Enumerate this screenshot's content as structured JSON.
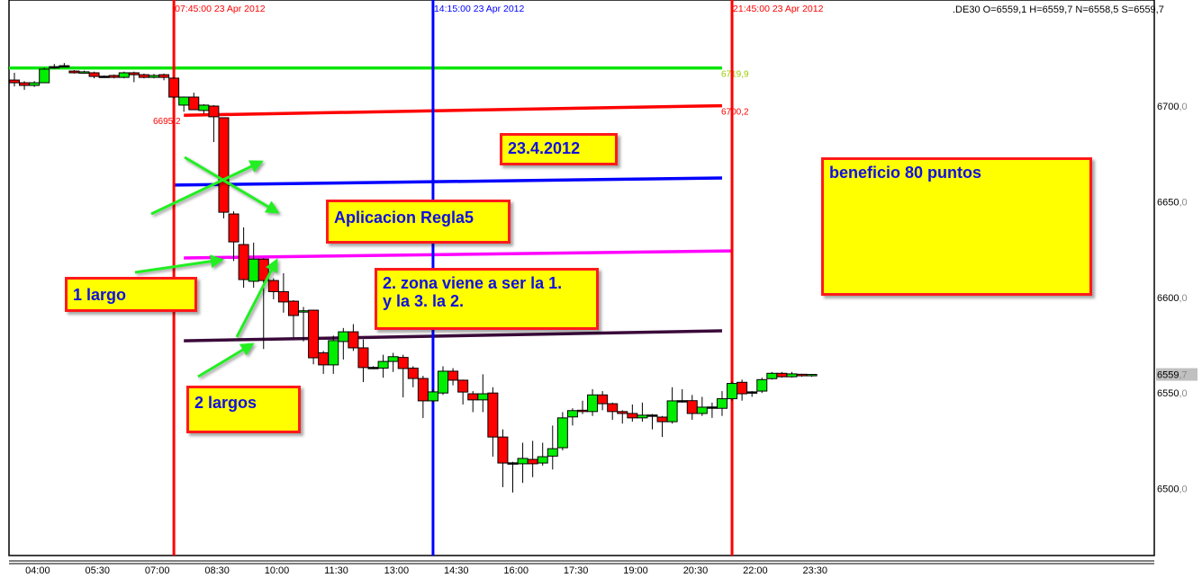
{
  "header": {
    "symbol_readout": ".DE30 O=6559,1 H=6559,7 N=6558,5 S=6559,7"
  },
  "chart_data": {
    "type": "candlestick",
    "symbol": ".DE30",
    "timeframe_minutes": 15,
    "ylim": [
      6478,
      6745
    ],
    "y_ticks": [
      {
        "int": "6700",
        "dec": ",0",
        "v": 6700
      },
      {
        "int": "6650",
        "dec": ",0",
        "v": 6650
      },
      {
        "int": "6600",
        "dec": ",0",
        "v": 6600
      },
      {
        "int": "6550",
        "dec": ",0",
        "v": 6550
      },
      {
        "int": "6500",
        "dec": ",0",
        "v": 6500
      }
    ],
    "current_price": {
      "int": "6559",
      "dec": ",7",
      "v": 6559.7
    },
    "x_ticks": [
      "04:00",
      "05:30",
      "07:00",
      "08:30",
      "10:00",
      "11:30",
      "13:00",
      "14:30",
      "16:00",
      "17:30",
      "19:00",
      "20:30",
      "22:00",
      "23:30"
    ],
    "colors": {
      "bull": "#00ee00",
      "bear": "#ff0000",
      "grid_frame": "#000000"
    },
    "candles": [
      [
        "03:45",
        6713.6,
        6717.4,
        6710.3,
        6712.2
      ],
      [
        "04:00",
        6712.2,
        6713,
        6708.5,
        6710.8
      ],
      [
        "04:15",
        6710.8,
        6713,
        6710,
        6712.2
      ],
      [
        "04:30",
        6712.2,
        6720,
        6712,
        6719.3
      ],
      [
        "04:45",
        6720.5,
        6722,
        6719.5,
        6720.6
      ],
      [
        "05:00",
        6721,
        6722.5,
        6720.5,
        6721.1
      ],
      [
        "05:15",
        6718.3,
        6718.8,
        6717,
        6717.4
      ],
      [
        "05:30",
        6717.4,
        6718.5,
        6717,
        6717.9
      ],
      [
        "05:45",
        6717.4,
        6718,
        6714.5,
        6715.5
      ],
      [
        "06:00",
        6715.5,
        6716,
        6715,
        6715.6
      ],
      [
        "06:15",
        6716,
        6716.5,
        6714.5,
        6715
      ],
      [
        "06:30",
        6715,
        6718,
        6714.5,
        6717.4
      ],
      [
        "06:45",
        6717.4,
        6718,
        6712.5,
        6716.4
      ],
      [
        "07:00",
        6716.4,
        6717,
        6714.5,
        6715
      ],
      [
        "07:15",
        6715,
        6716.8,
        6714.5,
        6716
      ],
      [
        "07:30",
        6716.4,
        6717,
        6713.5,
        6715
      ],
      [
        "07:45",
        6714.6,
        6715,
        6704,
        6704.7
      ],
      [
        "08:00",
        6700.5,
        6705,
        6697,
        6704.7
      ],
      [
        "08:15",
        6704.7,
        6707,
        6698,
        6698.1
      ],
      [
        "08:30",
        6697.7,
        6701,
        6696,
        6700.5
      ],
      [
        "08:45",
        6700,
        6700.5,
        6681.2,
        6694.4
      ],
      [
        "09:00",
        6693.9,
        6694,
        6641.3,
        6644.5
      ],
      [
        "09:15",
        6643.6,
        6645,
        6619,
        6629
      ],
      [
        "09:30",
        6627.6,
        6636.6,
        6605,
        6609.3
      ],
      [
        "09:45",
        6608.4,
        6628.6,
        6605,
        6620
      ],
      [
        "10:00",
        6620,
        6620.5,
        6573,
        6608.8
      ],
      [
        "10:15",
        6608.8,
        6610,
        6599,
        6603
      ],
      [
        "10:30",
        6603,
        6612.6,
        6592,
        6597.6
      ],
      [
        "10:45",
        6598,
        6598.5,
        6579,
        6590.5
      ],
      [
        "11:00",
        6592.5,
        6595,
        6577,
        6593
      ],
      [
        "11:15",
        6593.3,
        6593.5,
        6565,
        6568.4
      ],
      [
        "11:30",
        6571,
        6572,
        6560,
        6564.7
      ],
      [
        "11:45",
        6564.7,
        6580,
        6560,
        6577.4
      ],
      [
        "12:00",
        6576.9,
        6584,
        6567.5,
        6582
      ],
      [
        "12:15",
        6582,
        6586,
        6572,
        6573.6
      ],
      [
        "12:30",
        6573.6,
        6578,
        6555.7,
        6563.3
      ],
      [
        "12:45",
        6563.3,
        6564,
        6562.5,
        6563.4
      ],
      [
        "13:00",
        6563,
        6570,
        6558,
        6566.5
      ],
      [
        "13:15",
        6566.5,
        6571,
        6561,
        6569
      ],
      [
        "13:30",
        6568.6,
        6570,
        6547.7,
        6562.8
      ],
      [
        "13:45",
        6563,
        6564,
        6553,
        6557.6
      ],
      [
        "14:00",
        6557.6,
        6559,
        6536.9,
        6545.9
      ],
      [
        "14:15",
        6545.9,
        6552,
        6545,
        6550.6
      ],
      [
        "14:30",
        6550,
        6564,
        6549,
        6561.4
      ],
      [
        "14:45",
        6561.4,
        6563,
        6554,
        6556.7
      ],
      [
        "15:00",
        6556.7,
        6557,
        6544,
        6550.5
      ],
      [
        "15:15",
        6549.6,
        6551,
        6540,
        6546.4
      ],
      [
        "15:30",
        6546.4,
        6559.8,
        6540,
        6549.6
      ],
      [
        "15:45",
        6550,
        6553,
        6516.7,
        6527
      ],
      [
        "16:00",
        6527,
        6531,
        6500.8,
        6513.4
      ],
      [
        "16:15",
        6513.4,
        6514,
        6498,
        6513.5
      ],
      [
        "16:30",
        6513,
        6524,
        6503,
        6515.8
      ],
      [
        "16:45",
        6515.3,
        6525,
        6506,
        6513
      ],
      [
        "17:00",
        6513.4,
        6524,
        6512,
        6516.7
      ],
      [
        "17:15",
        6517,
        6533,
        6510,
        6520.9
      ],
      [
        "17:30",
        6521.4,
        6540,
        6520,
        6537
      ],
      [
        "17:45",
        6537.5,
        6542,
        6533,
        6540.8
      ],
      [
        "18:00",
        6541,
        6546,
        6539,
        6540.3
      ],
      [
        "18:15",
        6540.3,
        6552,
        6538,
        6549
      ],
      [
        "18:30",
        6549,
        6551,
        6541,
        6544.4
      ],
      [
        "18:45",
        6544.4,
        6545,
        6536,
        6540.3
      ],
      [
        "19:00",
        6540.3,
        6541,
        6534,
        6539.3
      ],
      [
        "19:15",
        6539.3,
        6544,
        6535,
        6537
      ],
      [
        "19:30",
        6537,
        6545,
        6535,
        6538.4
      ],
      [
        "19:45",
        6538.4,
        6539,
        6531,
        6538.5
      ],
      [
        "20:00",
        6537.4,
        6538,
        6527,
        6535
      ],
      [
        "20:15",
        6535,
        6553,
        6534,
        6545.9
      ],
      [
        "20:30",
        6545.9,
        6552,
        6545,
        6546
      ],
      [
        "20:45",
        6546,
        6549,
        6536,
        6539.3
      ],
      [
        "21:00",
        6539.3,
        6548,
        6538,
        6542.6
      ],
      [
        "21:15",
        6542.6,
        6545,
        6537,
        6542.7
      ],
      [
        "21:30",
        6542,
        6551,
        6538,
        6547
      ],
      [
        "21:45",
        6547,
        6556,
        6546,
        6555
      ],
      [
        "22:00",
        6555.6,
        6557,
        6546,
        6549.6
      ],
      [
        "22:15",
        6550.5,
        6551,
        6548,
        6550.6
      ],
      [
        "22:30",
        6551,
        6558,
        6550,
        6557
      ],
      [
        "22:45",
        6557.5,
        6561,
        6557,
        6560.3
      ],
      [
        "23:00",
        6560.3,
        6561,
        6558,
        6558.5
      ],
      [
        "23:15",
        6558.5,
        6561,
        6558,
        6560
      ],
      [
        "23:30",
        6559.8,
        6560,
        6558.5,
        6559
      ],
      [
        "23:45",
        6559.1,
        6559.7,
        6558.5,
        6559.7
      ]
    ],
    "vertical_lines": [
      {
        "time": "07:45",
        "label": "07:45:00 23 Apr 2012",
        "color": "#ff0000"
      },
      {
        "time": "14:15",
        "label": "14:15:00 23 Apr 2012",
        "color": "#0000ff"
      },
      {
        "time": "21:45",
        "label": "21:45:00 23 Apr 2012",
        "color": "#ff0000"
      }
    ],
    "trend_lines": [
      {
        "name": "green",
        "color": "#00e600",
        "from": [
          "03:30",
          6719.9
        ],
        "to": [
          "21:30",
          6719.9
        ],
        "end_label": "6719,9",
        "label_color": "#99cc00"
      },
      {
        "name": "red",
        "color": "#ff0000",
        "from": [
          "08:00",
          6695.2
        ],
        "to": [
          "21:30",
          6700.2
        ],
        "start_label": "6695,2",
        "end_label": "6700,2",
        "label_color": "#ff0000"
      },
      {
        "name": "blue",
        "color": "#0000ff",
        "from": [
          "07:45",
          6658.7
        ],
        "to": [
          "21:30",
          6662.4
        ]
      },
      {
        "name": "magenta",
        "color": "#ff00ff",
        "from": [
          "08:00",
          6620.6
        ],
        "to": [
          "21:45",
          6624.3
        ]
      },
      {
        "name": "dark-purple",
        "color": "#3a0a3a",
        "from": [
          "08:00",
          6577.3
        ],
        "to": [
          "21:30",
          6582.5
        ]
      }
    ]
  },
  "annotations": {
    "date": "23.4.2012",
    "rule": "Aplicacion Regla5",
    "profit": "beneficio 80 puntos",
    "one_long": "1 largo",
    "zone": "2. zona viene a ser la 1.\ny la 3. la 2.",
    "two_longs": "2 largos"
  }
}
